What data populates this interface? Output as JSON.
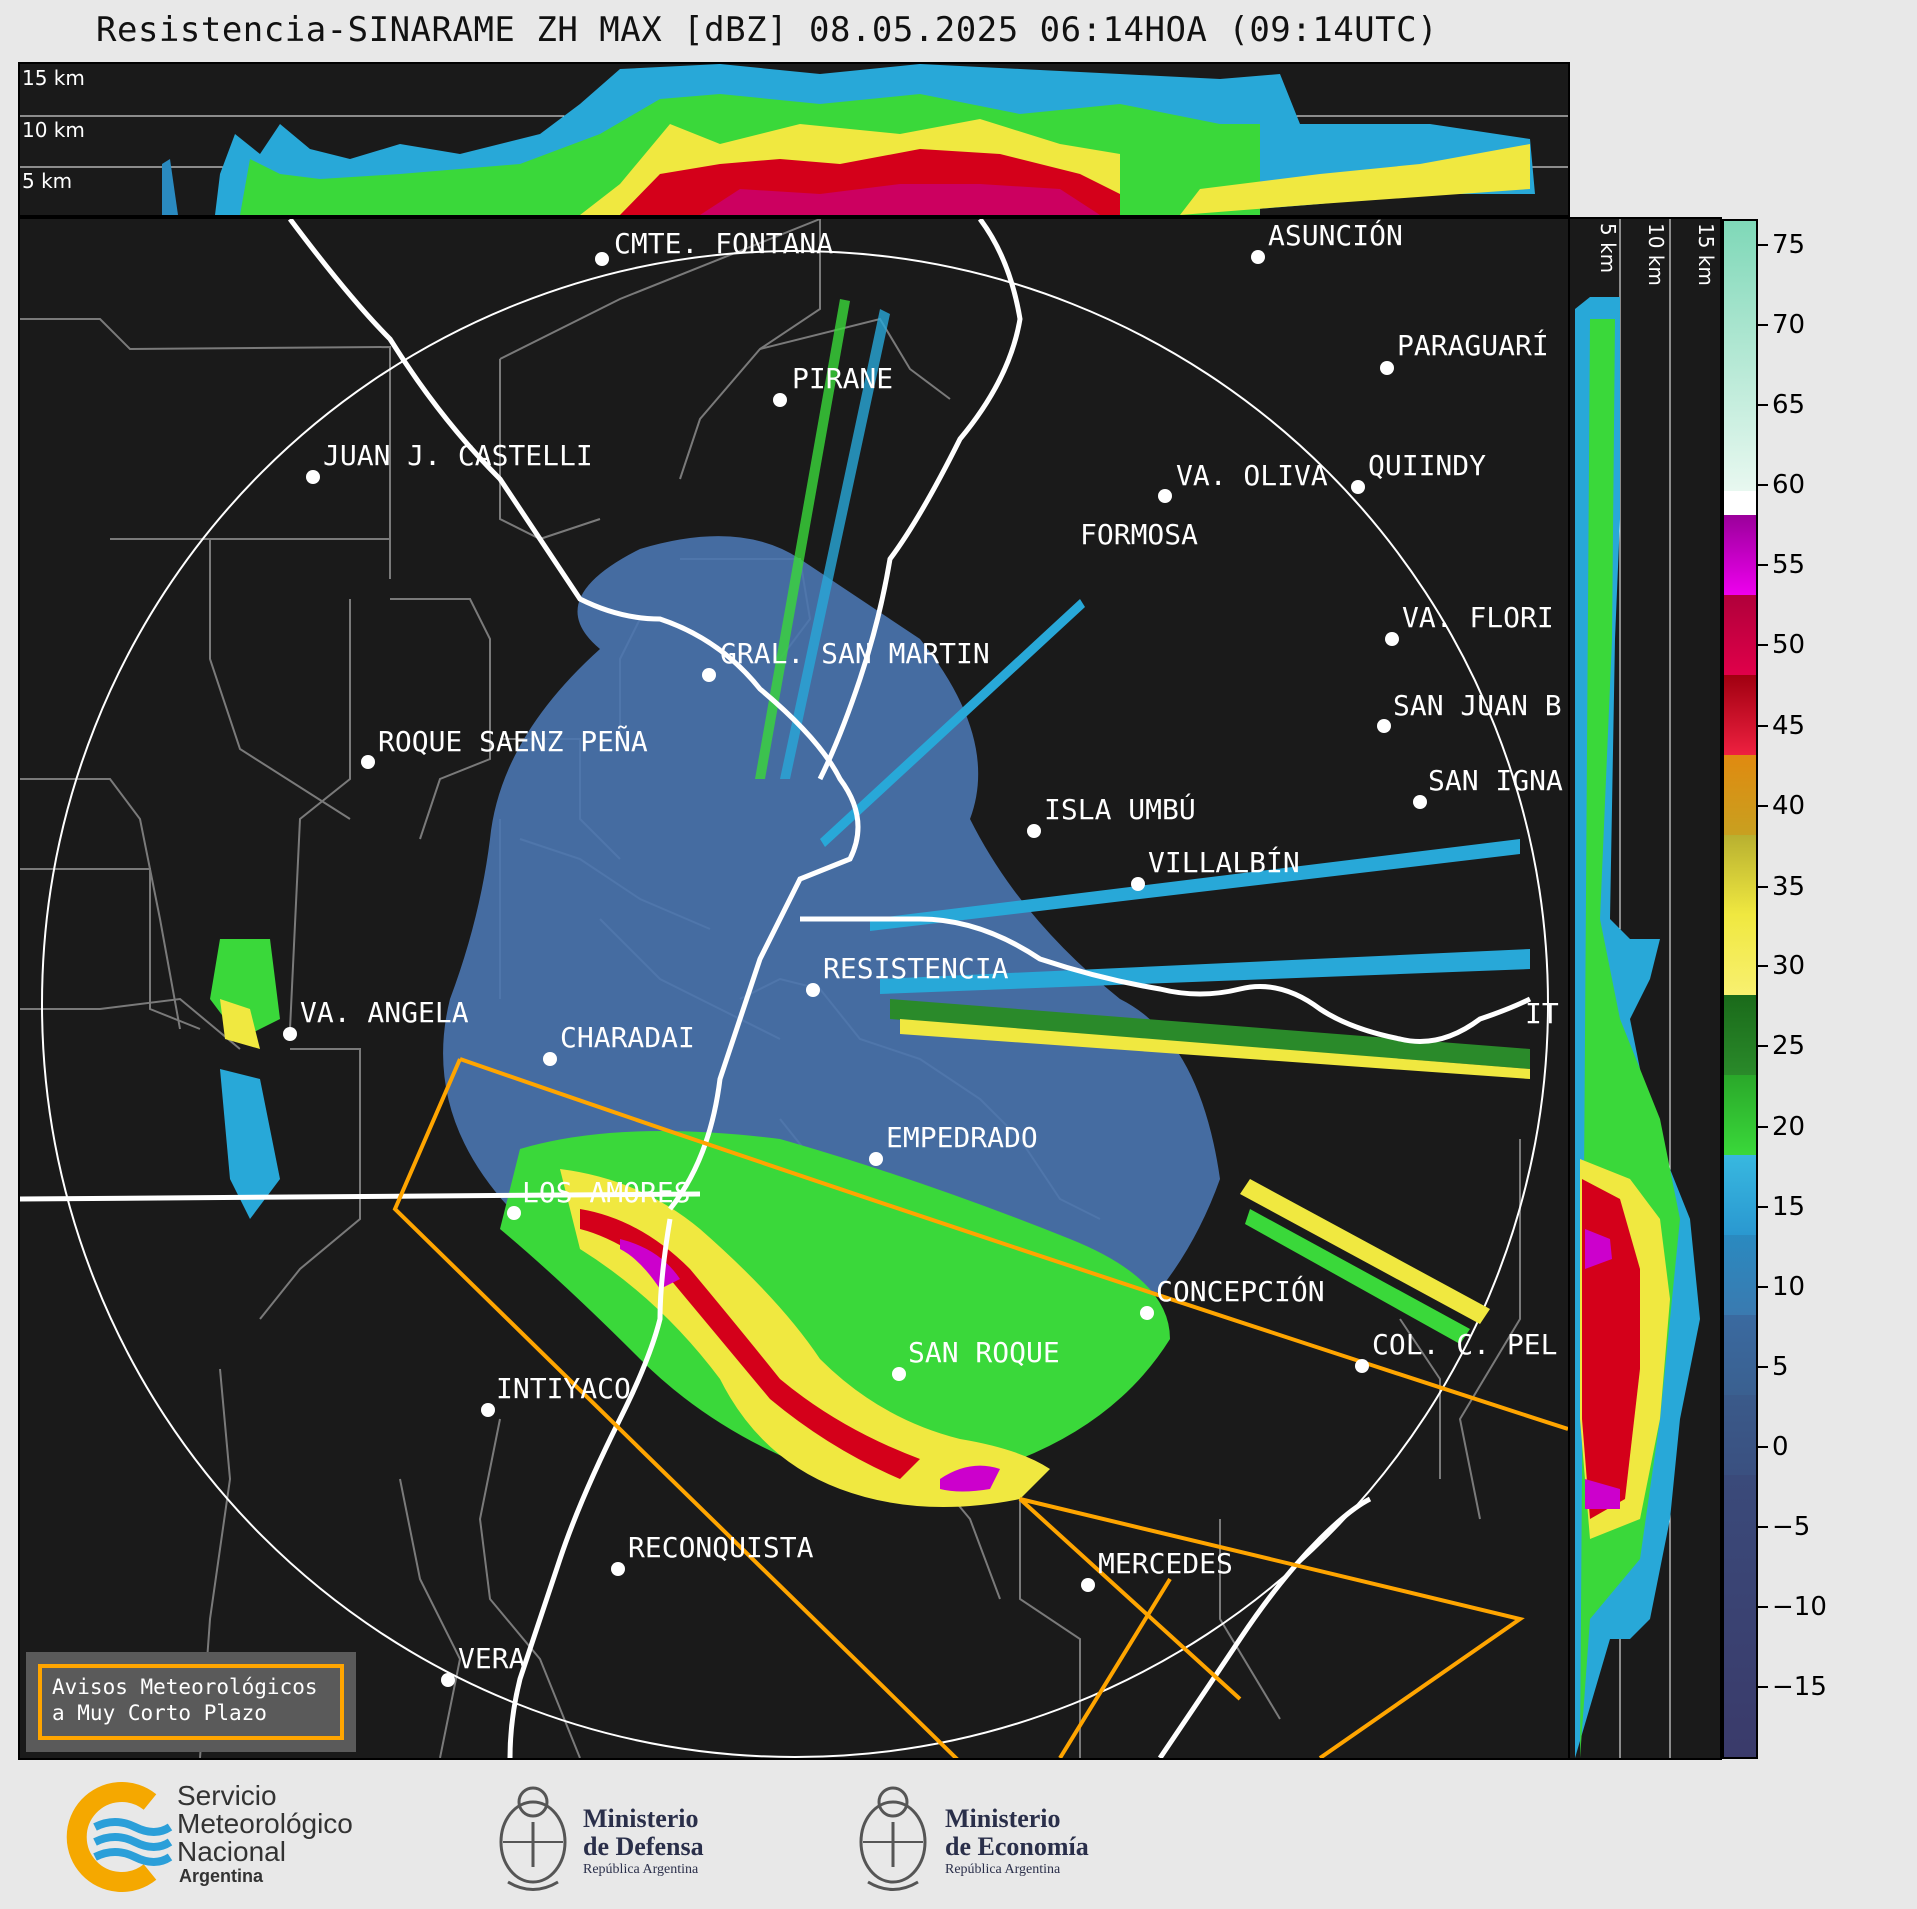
{
  "title": "Resistencia-SINARAME ZH MAX [dBZ] 08.05.2025 06:14HOA (09:14UTC)",
  "top_profile": {
    "altitude_labels": [
      "15 km",
      "10 km",
      "5 km"
    ]
  },
  "side_profile": {
    "altitude_labels": [
      "5 km",
      "10 km",
      "15 km"
    ]
  },
  "colorbar": {
    "unit": "dBZ",
    "ticks": [
      "75",
      "70",
      "65",
      "60",
      "55",
      "50",
      "45",
      "40",
      "35",
      "30",
      "25",
      "20",
      "15",
      "10",
      "5",
      "0",
      "−5",
      "−10",
      "−15"
    ],
    "colors": {
      "gt60": "#7fd8b8",
      "60": "#ffffff",
      "55": "#cc00cc",
      "50": "#e0004a",
      "45": "#d4001a",
      "40": "#e08a10",
      "35": "#d8c830",
      "30": "#f0e840",
      "25": "#2a8a2a",
      "20": "#3ad83a",
      "15": "#28a8d8",
      "10": "#2a8ac0",
      "5": "#3a6aa0",
      "0": "#3a5a8a",
      "neg": "#3a3a6a"
    }
  },
  "cities": [
    {
      "name": "CMTE. FONTANA"
    },
    {
      "name": "ASUNCIÓN"
    },
    {
      "name": "PIRANE"
    },
    {
      "name": "PARAGUARÍ"
    },
    {
      "name": "JUAN J. CASTELLI"
    },
    {
      "name": "VA. OLIVA"
    },
    {
      "name": "QUIINDY"
    },
    {
      "name": "FORMOSA"
    },
    {
      "name": "VA. FLORI"
    },
    {
      "name": "GRAL. SAN MARTIN"
    },
    {
      "name": "SAN JUAN B"
    },
    {
      "name": "ROQUE SAENZ PEÑA"
    },
    {
      "name": "SAN IGNA"
    },
    {
      "name": "ISLA UMBÚ"
    },
    {
      "name": "VILLALBÍN"
    },
    {
      "name": "RESISTENCIA"
    },
    {
      "name": "IT"
    },
    {
      "name": "VA. ANGELA"
    },
    {
      "name": "CHARADAI"
    },
    {
      "name": "EMPEDRADO"
    },
    {
      "name": "LOS AMORES"
    },
    {
      "name": "CONCEPCIÓN"
    },
    {
      "name": "COL. C. PEL"
    },
    {
      "name": "SAN ROQUE"
    },
    {
      "name": "INTIYACO"
    },
    {
      "name": "RECONQUISTA"
    },
    {
      "name": "MERCEDES"
    },
    {
      "name": "VERA"
    }
  ],
  "warning_box": {
    "line1": "Avisos Meteorológicos",
    "line2": "a Muy Corto Plazo"
  },
  "footer": {
    "smn": {
      "line1": "Servicio",
      "line2": "Meteorológico",
      "line3": "Nacional",
      "line4": "Argentina"
    },
    "defensa": {
      "line1": "Ministerio",
      "line2": "de Defensa",
      "line3": "República Argentina"
    },
    "economia": {
      "line1": "Ministerio",
      "line2": "de Economía",
      "line3": "República Argentina"
    }
  }
}
